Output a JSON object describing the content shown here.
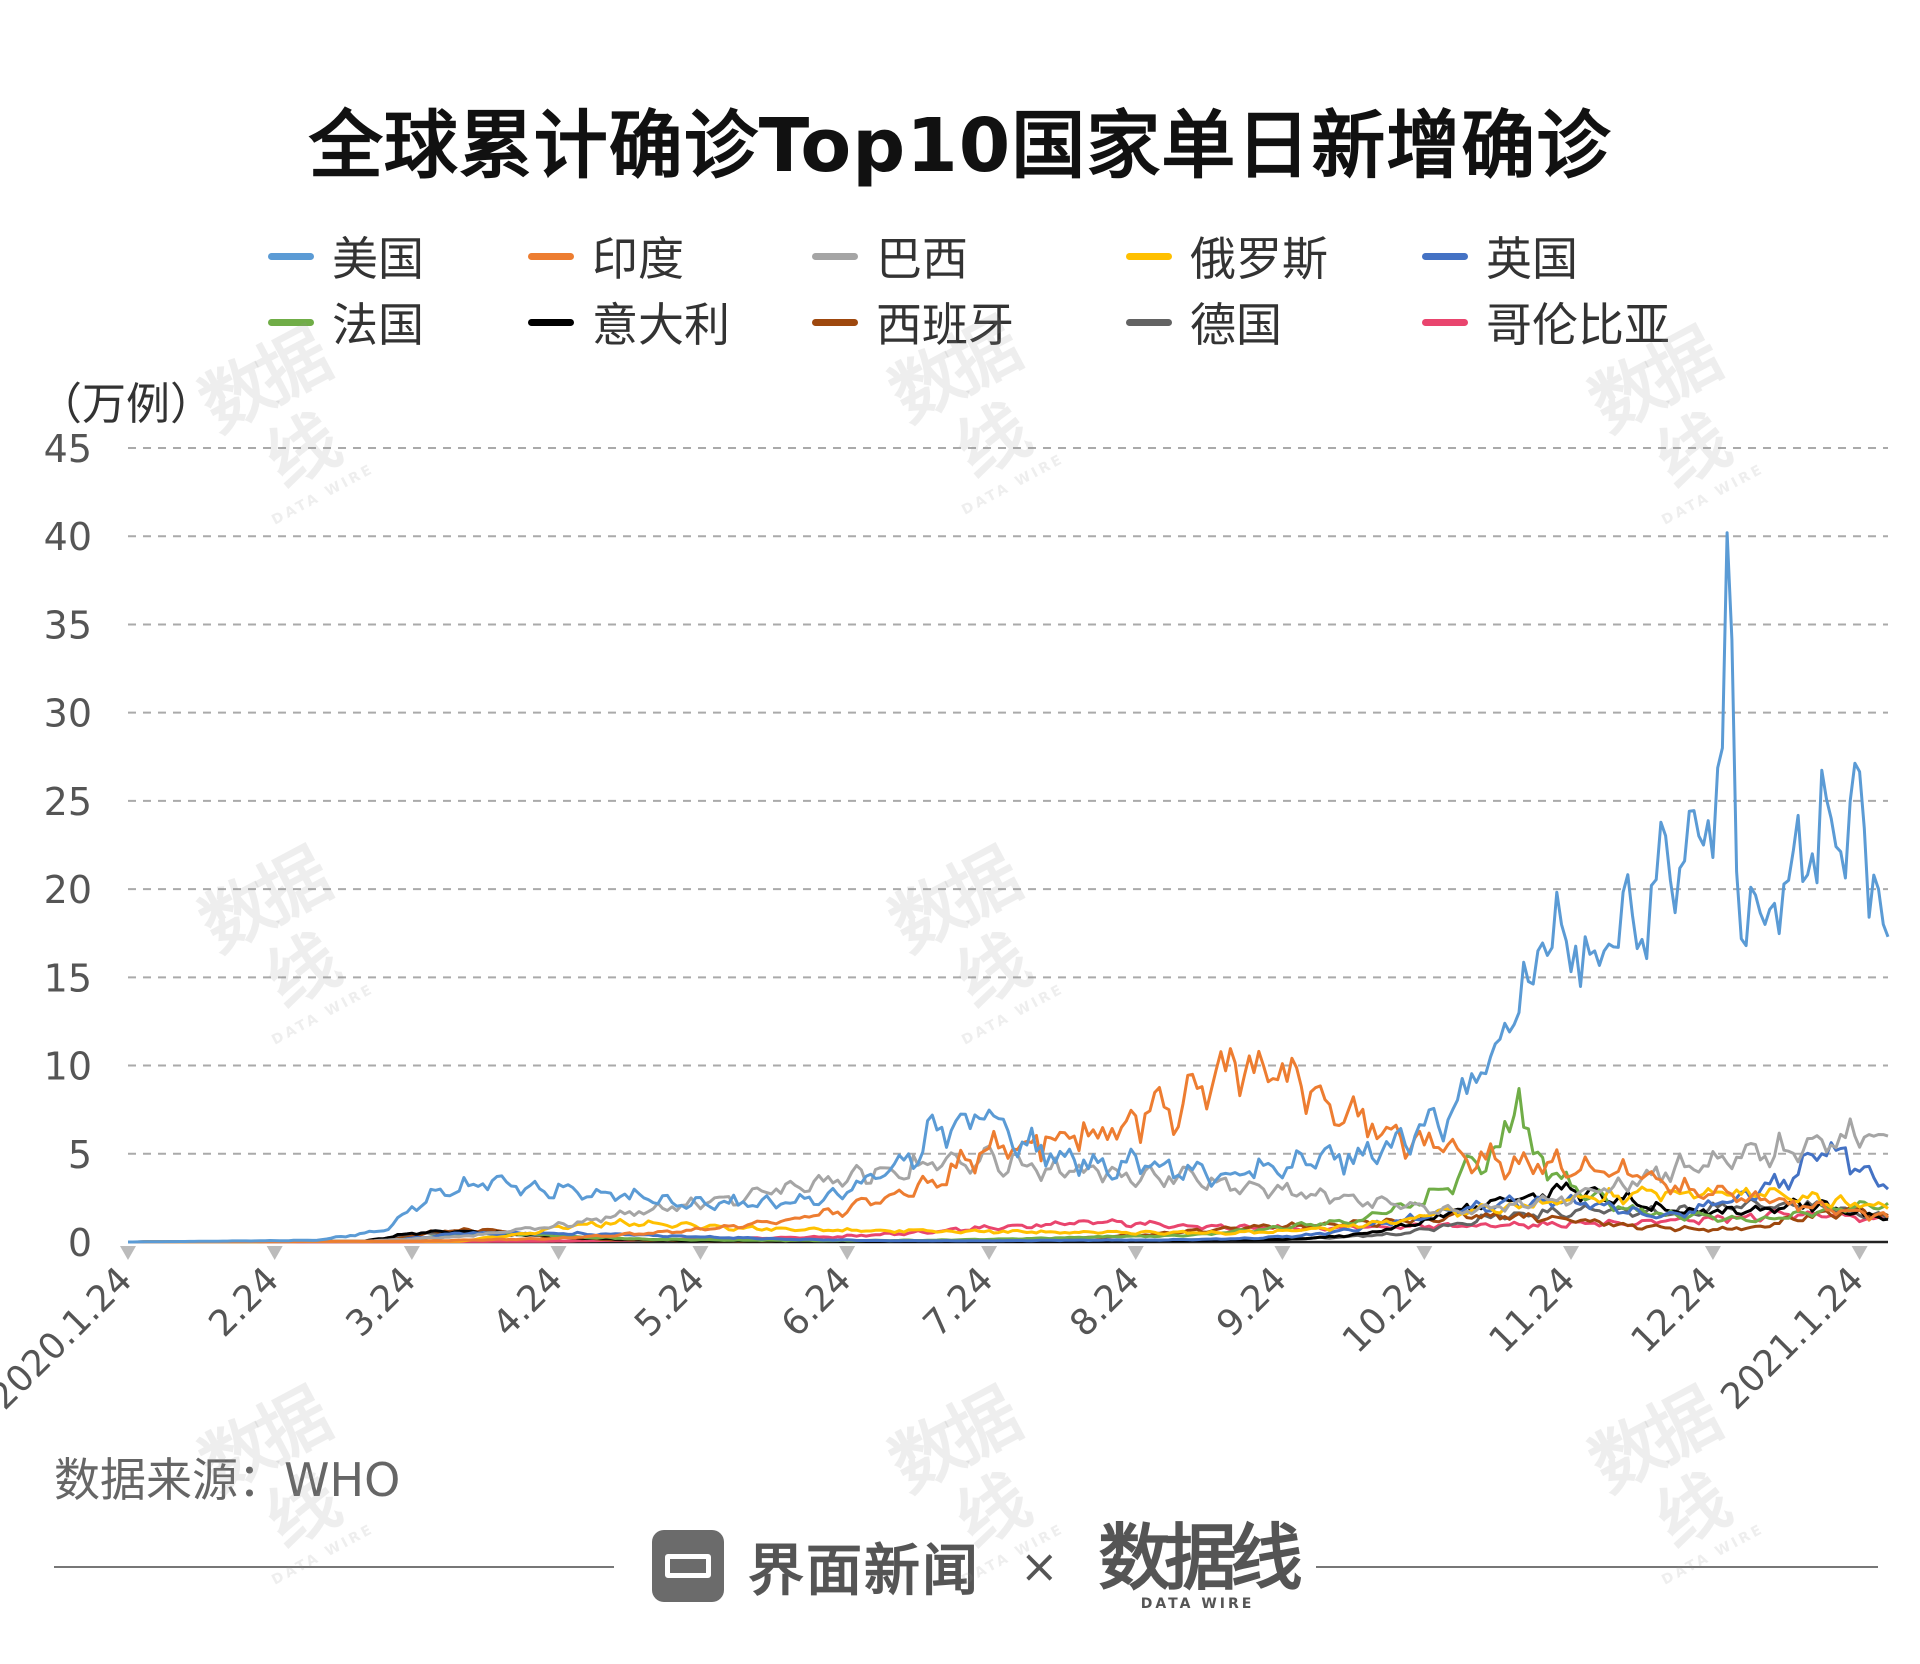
{
  "header": {
    "title": "全球累计确诊Top10国家单日新增确诊"
  },
  "unit_label": "（万例）",
  "source": "数据来源：WHO",
  "footer": {
    "brand_name": "界面新闻",
    "separator": "×",
    "partner_name": "数据线",
    "partner_sub": "DATA WIRE"
  },
  "watermark": {
    "main": "数据线",
    "sub": "DATA WIRE"
  },
  "chart_data": {
    "type": "line",
    "title": "全球累计确诊Top10国家单日新增确诊",
    "ylabel": "（万例）",
    "xlabel": "",
    "ylim": [
      0,
      45
    ],
    "yticks": [
      0,
      5,
      10,
      15,
      20,
      25,
      30,
      35,
      40,
      45
    ],
    "grid": true,
    "legend_position": "top",
    "x_ticks": [
      "2020.1.24",
      "2.24",
      "3.24",
      "4.24",
      "5.24",
      "6.24",
      "7.24",
      "8.24",
      "9.24",
      "10.24",
      "11.24",
      "12.24",
      "2021.1.24"
    ],
    "x_tick_days": [
      0,
      31,
      60,
      91,
      121,
      152,
      182,
      213,
      244,
      274,
      305,
      335,
      366
    ],
    "x_range_days": [
      0,
      372
    ],
    "series": [
      {
        "name": "美国",
        "color": "#5b9bd5",
        "points": [
          [
            0,
            0
          ],
          [
            40,
            0.1
          ],
          [
            55,
            0.7
          ],
          [
            60,
            2
          ],
          [
            66,
            3
          ],
          [
            75,
            3.3
          ],
          [
            85,
            3.2
          ],
          [
            95,
            2.8
          ],
          [
            110,
            2.4
          ],
          [
            125,
            2.2
          ],
          [
            140,
            2.2
          ],
          [
            150,
            2.7
          ],
          [
            158,
            3.6
          ],
          [
            165,
            5
          ],
          [
            172,
            6.5
          ],
          [
            180,
            7
          ],
          [
            186,
            6.3
          ],
          [
            190,
            5.5
          ],
          [
            195,
            5
          ],
          [
            205,
            4.5
          ],
          [
            215,
            4.3
          ],
          [
            225,
            4.1
          ],
          [
            235,
            3.8
          ],
          [
            245,
            4.2
          ],
          [
            255,
            4.7
          ],
          [
            265,
            5.1
          ],
          [
            272,
            6
          ],
          [
            280,
            7.5
          ],
          [
            288,
            10.5
          ],
          [
            294,
            13
          ],
          [
            298,
            16.5
          ],
          [
            303,
            18
          ],
          [
            310,
            16.5
          ],
          [
            318,
            18.5
          ],
          [
            326,
            20.5
          ],
          [
            333,
            22.5
          ],
          [
            337,
            28
          ],
          [
            338,
            40.2
          ],
          [
            340,
            21
          ],
          [
            346,
            18
          ],
          [
            351,
            20.5
          ],
          [
            356,
            22
          ],
          [
            360,
            24
          ],
          [
            364,
            25
          ],
          [
            370,
            20
          ],
          [
            372,
            17.3
          ]
        ]
      },
      {
        "name": "印度",
        "color": "#ed7d31",
        "points": [
          [
            0,
            0
          ],
          [
            60,
            0.05
          ],
          [
            90,
            0.2
          ],
          [
            110,
            0.5
          ],
          [
            125,
            0.8
          ],
          [
            140,
            1.3
          ],
          [
            150,
            1.7
          ],
          [
            160,
            2.5
          ],
          [
            170,
            3.5
          ],
          [
            180,
            5
          ],
          [
            190,
            5.7
          ],
          [
            200,
            6
          ],
          [
            210,
            6.5
          ],
          [
            220,
            7.5
          ],
          [
            227,
            8.8
          ],
          [
            232,
            9.7
          ],
          [
            238,
            9.6
          ],
          [
            243,
            9.2
          ],
          [
            250,
            8.5
          ],
          [
            258,
            7.5
          ],
          [
            266,
            6.5
          ],
          [
            274,
            5.5
          ],
          [
            282,
            5
          ],
          [
            290,
            4.5
          ],
          [
            300,
            4.5
          ],
          [
            315,
            4
          ],
          [
            330,
            3
          ],
          [
            345,
            2.4
          ],
          [
            360,
            1.8
          ],
          [
            372,
            1.4
          ]
        ]
      },
      {
        "name": "巴西",
        "color": "#a5a5a5",
        "points": [
          [
            0,
            0
          ],
          [
            50,
            0.05
          ],
          [
            70,
            0.3
          ],
          [
            90,
            0.9
          ],
          [
            105,
            1.6
          ],
          [
            120,
            2.2
          ],
          [
            135,
            2.8
          ],
          [
            150,
            3.5
          ],
          [
            160,
            4.2
          ],
          [
            170,
            4.5
          ],
          [
            180,
            4.6
          ],
          [
            190,
            4.3
          ],
          [
            200,
            4
          ],
          [
            210,
            3.7
          ],
          [
            220,
            3.7
          ],
          [
            230,
            3.4
          ],
          [
            240,
            3
          ],
          [
            250,
            2.7
          ],
          [
            260,
            2.3
          ],
          [
            270,
            2
          ],
          [
            280,
            1.8
          ],
          [
            290,
            2
          ],
          [
            300,
            2.4
          ],
          [
            310,
            2.9
          ],
          [
            320,
            3.6
          ],
          [
            330,
            4.3
          ],
          [
            340,
            4.8
          ],
          [
            350,
            5.2
          ],
          [
            360,
            5.5
          ],
          [
            365,
            6
          ],
          [
            372,
            6
          ]
        ]
      },
      {
        "name": "俄罗斯",
        "color": "#ffc000",
        "points": [
          [
            0,
            0
          ],
          [
            70,
            0.05
          ],
          [
            85,
            0.5
          ],
          [
            95,
            1
          ],
          [
            105,
            1.1
          ],
          [
            120,
            0.9
          ],
          [
            140,
            0.7
          ],
          [
            160,
            0.65
          ],
          [
            180,
            0.6
          ],
          [
            200,
            0.55
          ],
          [
            220,
            0.5
          ],
          [
            240,
            0.55
          ],
          [
            255,
            0.8
          ],
          [
            265,
            1.1
          ],
          [
            275,
            1.5
          ],
          [
            285,
            1.8
          ],
          [
            295,
            2.1
          ],
          [
            305,
            2.4
          ],
          [
            315,
            2.6
          ],
          [
            325,
            2.8
          ],
          [
            335,
            2.8
          ],
          [
            345,
            2.7
          ],
          [
            355,
            2.5
          ],
          [
            365,
            2.2
          ],
          [
            372,
            1.9
          ]
        ]
      },
      {
        "name": "英国",
        "color": "#4472c4",
        "points": [
          [
            0,
            0
          ],
          [
            55,
            0.05
          ],
          [
            70,
            0.5
          ],
          [
            85,
            0.5
          ],
          [
            100,
            0.45
          ],
          [
            120,
            0.3
          ],
          [
            140,
            0.15
          ],
          [
            160,
            0.08
          ],
          [
            180,
            0.07
          ],
          [
            200,
            0.1
          ],
          [
            220,
            0.12
          ],
          [
            235,
            0.2
          ],
          [
            248,
            0.35
          ],
          [
            258,
            0.7
          ],
          [
            268,
            1.2
          ],
          [
            280,
            1.8
          ],
          [
            290,
            2.2
          ],
          [
            300,
            2.4
          ],
          [
            310,
            2.1
          ],
          [
            320,
            1.6
          ],
          [
            330,
            1.7
          ],
          [
            340,
            2.5
          ],
          [
            350,
            3.5
          ],
          [
            358,
            5
          ],
          [
            362,
            5.3
          ],
          [
            366,
            4
          ],
          [
            372,
            3
          ]
        ]
      },
      {
        "name": "法国",
        "color": "#70ad47",
        "points": [
          [
            0,
            0
          ],
          [
            55,
            0.05
          ],
          [
            68,
            0.4
          ],
          [
            80,
            0.5
          ],
          [
            95,
            0.3
          ],
          [
            110,
            0.15
          ],
          [
            130,
            0.1
          ],
          [
            150,
            0.08
          ],
          [
            170,
            0.1
          ],
          [
            190,
            0.2
          ],
          [
            210,
            0.3
          ],
          [
            225,
            0.4
          ],
          [
            240,
            0.7
          ],
          [
            250,
            1
          ],
          [
            260,
            1.2
          ],
          [
            270,
            2
          ],
          [
            278,
            3
          ],
          [
            285,
            4.5
          ],
          [
            290,
            5.4
          ],
          [
            294,
            8.7
          ],
          [
            297,
            5
          ],
          [
            305,
            3.2
          ],
          [
            315,
            2
          ],
          [
            325,
            1.5
          ],
          [
            335,
            1.4
          ],
          [
            345,
            1.3
          ],
          [
            355,
            1.6
          ],
          [
            365,
            2
          ],
          [
            372,
            2.2
          ]
        ]
      },
      {
        "name": "意大利",
        "color": "#000000",
        "points": [
          [
            0,
            0
          ],
          [
            50,
            0.05
          ],
          [
            60,
            0.5
          ],
          [
            70,
            0.6
          ],
          [
            85,
            0.4
          ],
          [
            100,
            0.2
          ],
          [
            120,
            0.08
          ],
          [
            150,
            0.03
          ],
          [
            180,
            0.03
          ],
          [
            210,
            0.05
          ],
          [
            230,
            0.1
          ],
          [
            245,
            0.15
          ],
          [
            255,
            0.3
          ],
          [
            265,
            0.6
          ],
          [
            275,
            1.3
          ],
          [
            285,
            2
          ],
          [
            295,
            2.5
          ],
          [
            305,
            3
          ],
          [
            315,
            2.5
          ],
          [
            325,
            1.8
          ],
          [
            335,
            1.7
          ],
          [
            345,
            1.8
          ],
          [
            355,
            2.2
          ],
          [
            362,
            1.8
          ],
          [
            372,
            1.3
          ]
        ]
      },
      {
        "name": "西班牙",
        "color": "#9e480e",
        "points": [
          [
            0,
            0
          ],
          [
            55,
            0.05
          ],
          [
            65,
            0.6
          ],
          [
            75,
            0.7
          ],
          [
            85,
            0.4
          ],
          [
            100,
            0.15
          ],
          [
            130,
            0.05
          ],
          [
            160,
            0.05
          ],
          [
            180,
            0.1
          ],
          [
            200,
            0.2
          ],
          [
            215,
            0.4
          ],
          [
            230,
            0.7
          ],
          [
            245,
            0.9
          ],
          [
            255,
            1
          ],
          [
            265,
            1.1
          ],
          [
            275,
            1.3
          ],
          [
            285,
            1.5
          ],
          [
            295,
            1.4
          ],
          [
            305,
            1.2
          ],
          [
            315,
            1
          ],
          [
            325,
            0.8
          ],
          [
            335,
            0.7
          ],
          [
            345,
            0.9
          ],
          [
            355,
            1.5
          ],
          [
            365,
            1.8
          ],
          [
            372,
            1.5
          ]
        ]
      },
      {
        "name": "德国",
        "color": "#636363",
        "points": [
          [
            0,
            0
          ],
          [
            50,
            0.05
          ],
          [
            60,
            0.4
          ],
          [
            70,
            0.6
          ],
          [
            85,
            0.4
          ],
          [
            100,
            0.15
          ],
          [
            130,
            0.05
          ],
          [
            160,
            0.04
          ],
          [
            180,
            0.05
          ],
          [
            200,
            0.07
          ],
          [
            220,
            0.1
          ],
          [
            240,
            0.15
          ],
          [
            255,
            0.25
          ],
          [
            270,
            0.5
          ],
          [
            280,
            1
          ],
          [
            290,
            1.5
          ],
          [
            300,
            1.7
          ],
          [
            310,
            1.8
          ],
          [
            320,
            1.7
          ],
          [
            330,
            1.8
          ],
          [
            340,
            2
          ],
          [
            350,
            2.2
          ],
          [
            360,
            2
          ],
          [
            372,
            1.3
          ]
        ]
      },
      {
        "name": "哥伦比亚",
        "color": "#e9456e",
        "points": [
          [
            0,
            0
          ],
          [
            60,
            0.02
          ],
          [
            90,
            0.05
          ],
          [
            120,
            0.15
          ],
          [
            150,
            0.3
          ],
          [
            165,
            0.5
          ],
          [
            180,
            0.8
          ],
          [
            195,
            1
          ],
          [
            205,
            1.1
          ],
          [
            215,
            1
          ],
          [
            225,
            0.9
          ],
          [
            240,
            0.8
          ],
          [
            255,
            0.8
          ],
          [
            270,
            0.9
          ],
          [
            285,
            0.9
          ],
          [
            300,
            1
          ],
          [
            315,
            1.1
          ],
          [
            330,
            1.2
          ],
          [
            340,
            1.4
          ],
          [
            350,
            1.6
          ],
          [
            360,
            1.5
          ],
          [
            372,
            1.3
          ]
        ]
      }
    ]
  }
}
